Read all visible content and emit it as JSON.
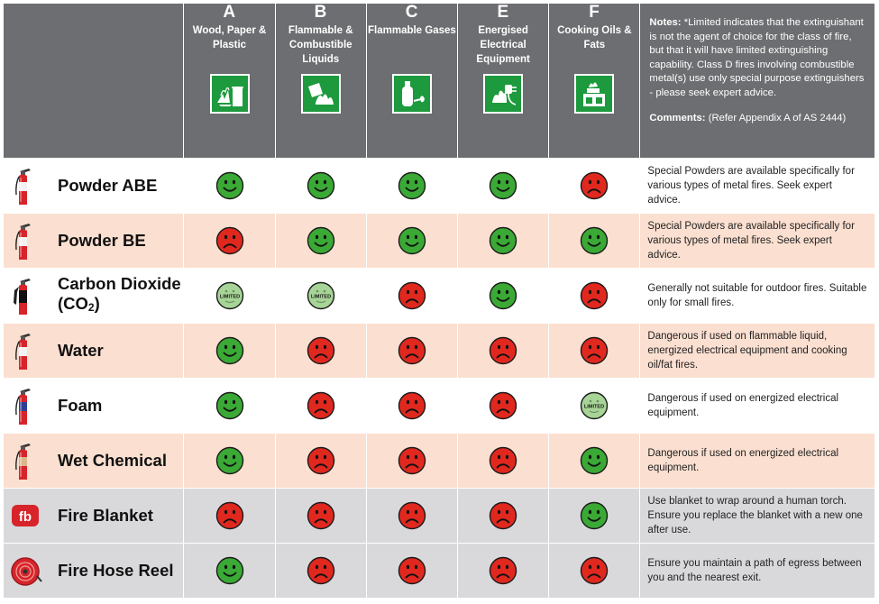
{
  "colors": {
    "header_bg": "#6d6e71",
    "green_face": "#3aa935",
    "red_face": "#e0281f",
    "limited_face": "#a7d497",
    "row_white": "#ffffff",
    "row_peach": "#fbdfd0",
    "row_grey": "#d9d9dc",
    "class_icon_green": "#1d9a3d"
  },
  "header": {
    "classes": [
      {
        "letter": "A",
        "desc": "Wood, Paper & Plastic",
        "icon": "burning-wood-paper-bin-icon"
      },
      {
        "letter": "B",
        "desc": "Flammable & Combustible Liquids",
        "icon": "burning-liquid-can-icon"
      },
      {
        "letter": "C",
        "desc": "Flammable Gases",
        "icon": "gas-cylinder-icon"
      },
      {
        "letter": "E",
        "desc": "Energised Electrical Equipment",
        "icon": "electrical-plug-fire-icon"
      },
      {
        "letter": "F",
        "desc": "Cooking Oils & Fats",
        "icon": "cooking-stove-fire-icon"
      }
    ],
    "notes_label": "Notes:",
    "notes_text": "*Limited indicates that the extinguishant is not the agent of choice for the class of fire, but that it will have limited extinguishing capability. Class D fires involving combustible metal(s) use only special purpose extinguishers - please seek expert advice.",
    "comments_label": "Comments:",
    "comments_text": "(Refer Appendix A of AS 2444)"
  },
  "limited_label": "LIMITED",
  "rows": [
    {
      "name": "Powder ABE",
      "icon": "extinguisher-icon",
      "ratings": [
        "good",
        "good",
        "good",
        "good",
        "bad"
      ],
      "note": "Special Powders are available specifically for various types of metal fires. Seek expert advice."
    },
    {
      "name": "Powder BE",
      "icon": "extinguisher-icon",
      "ratings": [
        "bad",
        "good",
        "good",
        "good",
        "good"
      ],
      "note": "Special Powders are available specifically for various types of metal fires. Seek expert advice."
    },
    {
      "name_part1": "Carbon Dioxide (CO",
      "name_sub": "2",
      "name_part2": ")",
      "icon": "co2-extinguisher-icon",
      "ratings": [
        "limited",
        "limited",
        "bad",
        "good",
        "bad"
      ],
      "note": "Generally not suitable for outdoor fires. Suitable only for small fires."
    },
    {
      "name": "Water",
      "icon": "extinguisher-icon",
      "ratings": [
        "good",
        "bad",
        "bad",
        "bad",
        "bad"
      ],
      "note": "Dangerous if used on flammable liquid, energized electrical equipment and cooking oil/fat fires."
    },
    {
      "name": "Foam",
      "icon": "foam-extinguisher-icon",
      "ratings": [
        "good",
        "bad",
        "bad",
        "bad",
        "limited"
      ],
      "note": "Dangerous if used on energized electrical equipment."
    },
    {
      "name": "Wet Chemical",
      "icon": "wet-chemical-extinguisher-icon",
      "ratings": [
        "good",
        "bad",
        "bad",
        "bad",
        "good"
      ],
      "note": "Dangerous if used on energized electrical equipment."
    },
    {
      "name": "Fire Blanket",
      "icon": "fire-blanket-icon",
      "icon_text": "fb",
      "ratings": [
        "bad",
        "bad",
        "bad",
        "bad",
        "good"
      ],
      "note": "Use blanket to wrap around a human torch. Ensure you replace the blanket with a new one after use."
    },
    {
      "name": "Fire Hose Reel",
      "icon": "hose-reel-icon",
      "ratings": [
        "good",
        "bad",
        "bad",
        "bad",
        "bad"
      ],
      "note": "Ensure you maintain a path of egress between you and the nearest exit."
    }
  ]
}
